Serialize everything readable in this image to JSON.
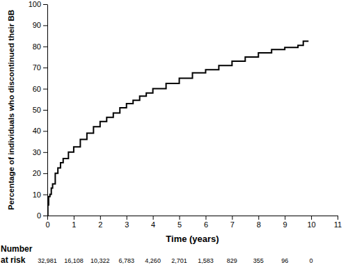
{
  "chart_data": {
    "type": "line",
    "x_label": "Time (years)",
    "y_label": "Percentage of individuals who discontinued their BB",
    "x": [
      0,
      0.02,
      0.05,
      0.1,
      0.15,
      0.2,
      0.3,
      0.4,
      0.5,
      0.6,
      0.8,
      1,
      1.25,
      1.5,
      1.75,
      2,
      2.25,
      2.5,
      2.75,
      3,
      3.25,
      3.5,
      3.75,
      4,
      4.5,
      5,
      5.5,
      6,
      6.5,
      7,
      7.5,
      8,
      8.5,
      9,
      9.5,
      9.7,
      9.9
    ],
    "series": [
      {
        "color": "#000000",
        "line_style": "step",
        "values": [
          0,
          5,
          9,
          10,
          13,
          15,
          20,
          22.5,
          25,
          27,
          30,
          32.5,
          36,
          39,
          42,
          44.5,
          46.5,
          48.5,
          51,
          53,
          54.5,
          56.5,
          58,
          60,
          62.5,
          65,
          67.5,
          69,
          71,
          73,
          75,
          77,
          78.5,
          79.5,
          80.5,
          82.5,
          82.5
        ]
      }
    ],
    "xlim": [
      0,
      11
    ],
    "xticks": [
      0,
      1,
      2,
      3,
      4,
      5,
      6,
      7,
      8,
      9,
      10,
      11
    ],
    "ylim": [
      0,
      100
    ],
    "yticks": [
      0,
      10,
      20,
      30,
      40,
      50,
      60,
      70,
      80,
      90,
      100
    ],
    "risk_table": {
      "title": [
        "Number",
        "at risk"
      ],
      "x": [
        0,
        1,
        2,
        3,
        4,
        5,
        6,
        7,
        8,
        9,
        10
      ],
      "values": [
        32981,
        16108,
        10322,
        6783,
        4260,
        2701,
        1583,
        829,
        355,
        96,
        0
      ],
      "value_labels": [
        "32,981",
        "16,108",
        "10,322",
        "6,783",
        "4,260",
        "2,701",
        "1,583",
        "829",
        "355",
        "96",
        "0"
      ]
    }
  }
}
